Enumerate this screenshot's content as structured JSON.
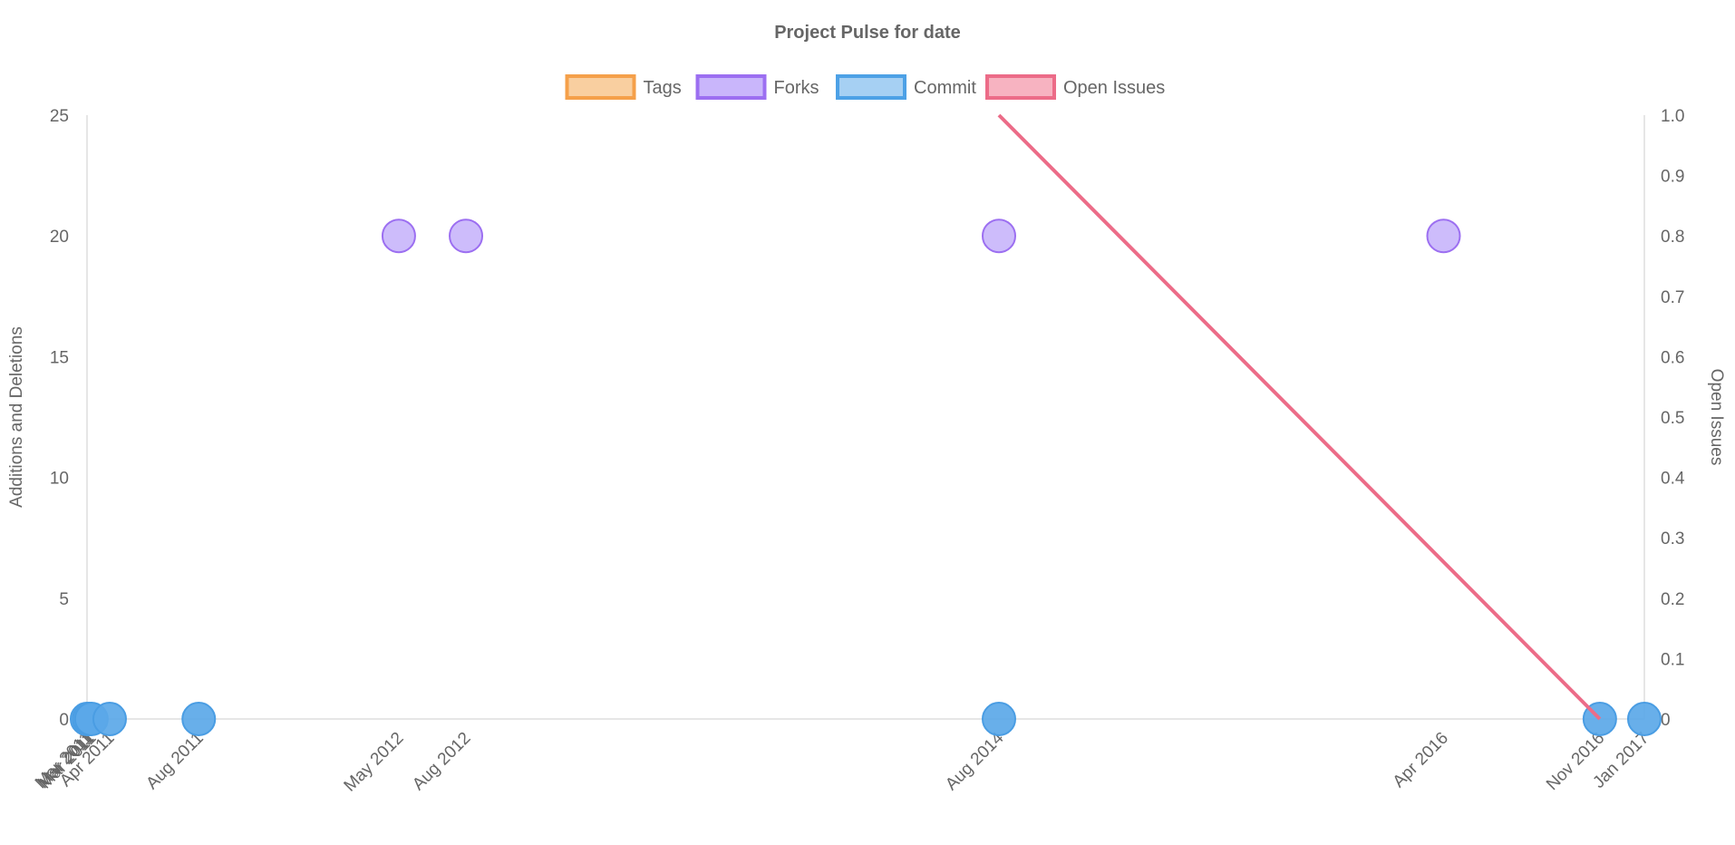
{
  "chart_data": {
    "type": "scatter",
    "title": "Project Pulse for date",
    "legend": {
      "placement": "top-center",
      "items": [
        {
          "label": "Tags",
          "fill": "#f9cfa0",
          "stroke": "#f5a04a"
        },
        {
          "label": "Forks",
          "fill": "#c9b6fb",
          "stroke": "#9c6ff1"
        },
        {
          "label": "Commit",
          "fill": "#a6d0f3",
          "stroke": "#4da1e6"
        },
        {
          "label": "Open Issues",
          "fill": "#f7b3c1",
          "stroke": "#ec6c88"
        }
      ]
    },
    "y_left": {
      "label": "Additions and Deletions",
      "range": [
        0,
        25
      ],
      "ticks": [
        "0",
        "5",
        "10",
        "15",
        "20",
        "25"
      ]
    },
    "y_right": {
      "label": "Open Issues",
      "range": [
        0,
        1
      ],
      "ticks": [
        "0",
        "0.1",
        "0.2",
        "0.3",
        "0.4",
        "0.5",
        "0.6",
        "0.7",
        "0.8",
        "0.9",
        "1.0"
      ]
    },
    "x_axis": {
      "type": "time",
      "range": [
        "2011-03-01",
        "2017-01-01"
      ],
      "ticks": [
        {
          "date": "2011-03-01",
          "label": "Mar 2011"
        },
        {
          "date": "2011-03-04",
          "label": "Mar 2011"
        },
        {
          "date": "2011-03-07",
          "label": "Mar 2011"
        },
        {
          "date": "2011-04-01",
          "label": "Apr 2011"
        },
        {
          "date": "2011-08-01",
          "label": "Aug 2011"
        },
        {
          "date": "2012-05-01",
          "label": "May 2012"
        },
        {
          "date": "2012-08-01",
          "label": "Aug 2012"
        },
        {
          "date": "2014-08-01",
          "label": "Aug 2014"
        },
        {
          "date": "2016-04-01",
          "label": "Apr 2016"
        },
        {
          "date": "2016-11-01",
          "label": "Nov 2016"
        },
        {
          "date": "2017-01-01",
          "label": "Jan 2017"
        }
      ]
    },
    "series": [
      {
        "name": "Forks",
        "axis": "left",
        "kind": "scatter",
        "fill": "#c9b6fb",
        "stroke": "#9c6ff1",
        "points": [
          {
            "x": "2012-05-01",
            "y": 20
          },
          {
            "x": "2012-08-01",
            "y": 20
          },
          {
            "x": "2014-08-01",
            "y": 20
          },
          {
            "x": "2016-04-01",
            "y": 20
          }
        ]
      },
      {
        "name": "Commit",
        "axis": "left",
        "kind": "scatter",
        "fill": "#5ba8e8",
        "stroke": "#4a9de3",
        "points": [
          {
            "x": "2011-03-01",
            "y": 0
          },
          {
            "x": "2011-03-04",
            "y": 0
          },
          {
            "x": "2011-03-07",
            "y": 0
          },
          {
            "x": "2011-04-01",
            "y": 0
          },
          {
            "x": "2011-08-01",
            "y": 0
          },
          {
            "x": "2014-08-01",
            "y": 0
          },
          {
            "x": "2016-11-01",
            "y": 0
          },
          {
            "x": "2017-01-01",
            "y": 0
          }
        ]
      },
      {
        "name": "Open Issues",
        "axis": "right",
        "kind": "line",
        "stroke": "#ec6c88",
        "points": [
          {
            "x": "2014-08-01",
            "y": 1
          },
          {
            "x": "2016-11-01",
            "y": 0
          }
        ]
      }
    ],
    "grid": {
      "horizontal": false,
      "vertical": false,
      "axis_lines": true
    }
  }
}
